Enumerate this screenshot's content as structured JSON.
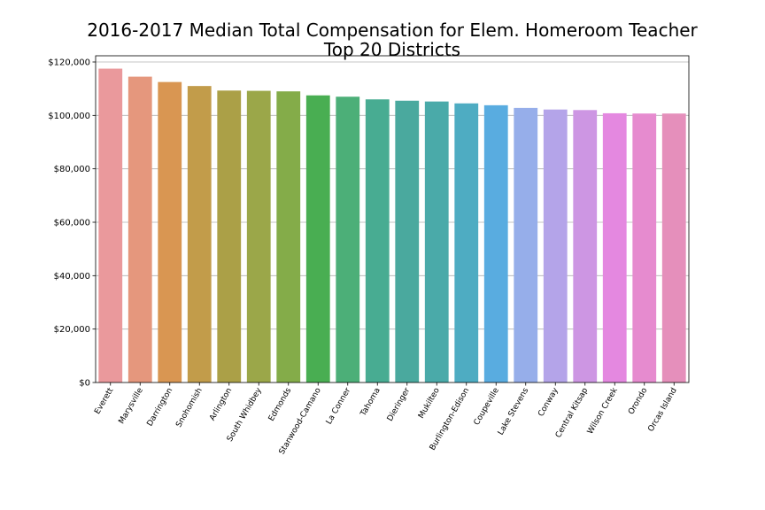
{
  "chart_data": {
    "type": "bar",
    "title_lines": [
      "2016-2017 Median Total Compensation for Elem. Homeroom Teacher",
      "Top 20 Districts"
    ],
    "xlabel": "",
    "ylabel": "",
    "ylim": [
      0,
      120000
    ],
    "yticks": [
      0,
      20000,
      40000,
      60000,
      80000,
      100000,
      120000
    ],
    "ytick_labels": [
      "$0",
      "$20,000",
      "$40,000",
      "$60,000",
      "$80,000",
      "$100,000",
      "$120,000"
    ],
    "grid": "horizontal",
    "categories": [
      "Everett",
      "Marysville",
      "Darrington",
      "Snohomish",
      "Arlington",
      "South Whidbey",
      "Edmonds",
      "Stanwood-Camano",
      "La Conner",
      "Tahoma",
      "Dieringer",
      "Mukilteo",
      "Burlington-Edison",
      "Coupeville",
      "Lake Stevens",
      "Conway",
      "Central Kitsap",
      "Wilson Creek",
      "Orondo",
      "Orcas Island"
    ],
    "values": [
      117500,
      114500,
      112500,
      111000,
      109300,
      109200,
      109000,
      107500,
      107000,
      106000,
      105500,
      105200,
      104500,
      103800,
      102800,
      102200,
      102000,
      100800,
      100700,
      100700
    ],
    "colors": [
      "#ea999c",
      "#e5977d",
      "#d99652",
      "#c29c4a",
      "#aba047",
      "#9ba749",
      "#84ac49",
      "#49ae52",
      "#4caf78",
      "#48ac92",
      "#4aa99e",
      "#4aaaa9",
      "#4eacc2",
      "#59ace0",
      "#96aeea",
      "#b4a4e9",
      "#cd96e3",
      "#e488e0",
      "#e68bcf",
      "#e58fbb"
    ]
  }
}
